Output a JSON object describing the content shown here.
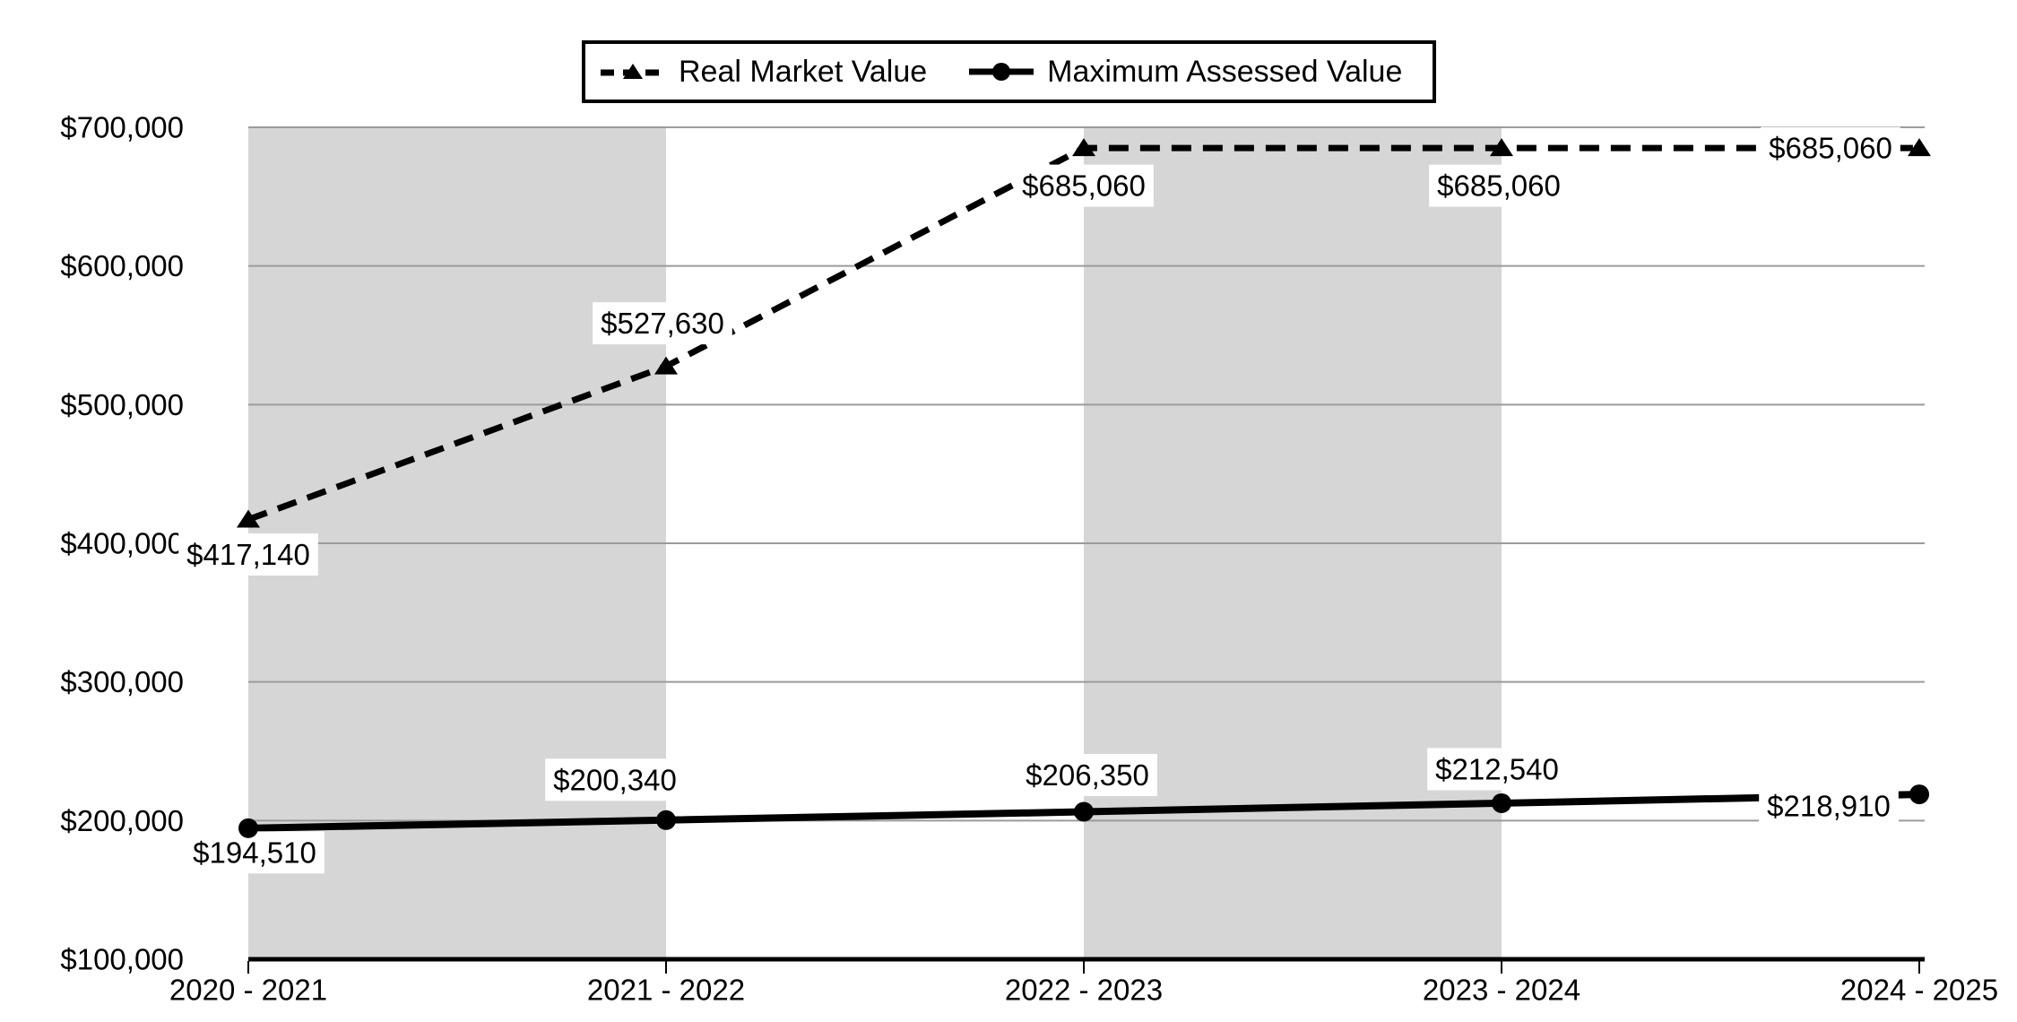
{
  "chart_data": {
    "type": "line",
    "title": "",
    "categories": [
      "2020 - 2021",
      "2021 - 2022",
      "2022 - 2023",
      "2023 - 2024",
      "2024 - 2025"
    ],
    "series": [
      {
        "name": "Real Market Value",
        "line_style": "dashed",
        "marker": "triangle",
        "values": [
          417140,
          527630,
          685060,
          685060,
          685060
        ],
        "value_labels": [
          "$417,140",
          "$527,630",
          "$685,060",
          "$685,060",
          "$685,060"
        ],
        "label_offsets": [
          [
            0,
            39
          ],
          [
            -4,
            -48
          ],
          [
            0,
            42
          ],
          [
            -3,
            42
          ],
          [
            -99,
            0
          ]
        ]
      },
      {
        "name": "Maximum Assessed Value",
        "line_style": "solid",
        "marker": "circle",
        "values": [
          194510,
          200340,
          206350,
          212540,
          218910
        ],
        "value_labels": [
          "$194,510",
          "$200,340",
          "$206,350",
          "$212,540",
          "$218,910"
        ],
        "label_offsets": [
          [
            7,
            27
          ],
          [
            -57,
            -45
          ],
          [
            4,
            -41
          ],
          [
            -5,
            -38
          ],
          [
            -101,
            13
          ]
        ]
      }
    ],
    "y_axis": {
      "min": 100000,
      "max": 700000,
      "tick_step": 100000,
      "tick_labels": [
        "$700,000",
        "$600,000",
        "$500,000",
        "$400,000",
        "$300,000",
        "$200,000",
        "$100,000"
      ],
      "tick_values": [
        700000,
        600000,
        500000,
        400000,
        300000,
        200000,
        100000
      ]
    },
    "bands": {
      "shaded_category_spans": [
        [
          0,
          1
        ],
        [
          2,
          3
        ]
      ]
    },
    "grid": true,
    "legend_position": "top",
    "colors": {
      "line": "#000000",
      "gridline": "#9b9b9b",
      "band": "#d6d6d6",
      "background": "#ffffff",
      "label_background": "#ffffff",
      "text": "#000000"
    }
  }
}
